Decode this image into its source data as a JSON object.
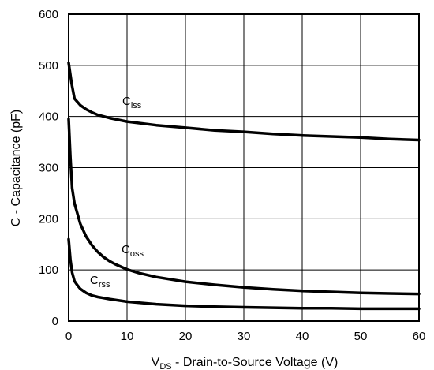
{
  "chart_data": {
    "type": "line",
    "title": "",
    "xlabel": {
      "main": "V",
      "sub": "DS",
      "rest": " - Drain-to-Source Voltage (V)"
    },
    "ylabel": "C - Capacitance (pF)",
    "xlim": [
      0,
      60
    ],
    "ylim": [
      0,
      600
    ],
    "xticks": [
      "0",
      "10",
      "20",
      "30",
      "40",
      "50",
      "60"
    ],
    "yticks": [
      "0",
      "100",
      "200",
      "300",
      "400",
      "500",
      "600"
    ],
    "grid": true,
    "series": [
      {
        "name": "Ciss",
        "label_main": "C",
        "label_sub": "iss",
        "x": [
          0,
          0.5,
          1,
          2,
          3,
          4,
          5,
          7,
          10,
          15,
          20,
          25,
          30,
          35,
          40,
          45,
          50,
          55,
          60
        ],
        "y": [
          505,
          465,
          435,
          422,
          414,
          408,
          403,
          397,
          390,
          383,
          378,
          373,
          370,
          366,
          363,
          361,
          359,
          356,
          354
        ]
      },
      {
        "name": "Coss",
        "label_main": "C",
        "label_sub": "oss",
        "x": [
          0,
          0.3,
          0.6,
          1,
          1.5,
          2,
          3,
          4,
          5,
          6,
          7,
          8,
          10,
          12,
          15,
          20,
          25,
          30,
          35,
          40,
          45,
          50,
          55,
          60
        ],
        "y": [
          395,
          320,
          260,
          230,
          210,
          190,
          165,
          148,
          135,
          125,
          117,
          111,
          101,
          94,
          86,
          77,
          71,
          66,
          62,
          59,
          57,
          55,
          54,
          53
        ]
      },
      {
        "name": "Crss",
        "label_main": "C",
        "label_sub": "rss",
        "x": [
          0,
          0.3,
          0.6,
          1,
          1.5,
          2,
          3,
          4,
          5,
          7,
          10,
          15,
          20,
          25,
          30,
          35,
          40,
          45,
          50,
          55,
          60
        ],
        "y": [
          160,
          120,
          95,
          78,
          70,
          63,
          55,
          50,
          47,
          43,
          38,
          33,
          30,
          28,
          27,
          26,
          25,
          25,
          24,
          24,
          24
        ]
      }
    ]
  }
}
